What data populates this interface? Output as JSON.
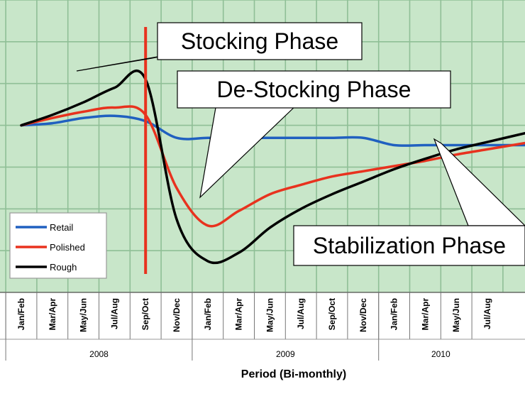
{
  "chart_data": {
    "type": "line",
    "title": "",
    "xlabel": "Period (Bi-monthly)",
    "ylabel": "",
    "categories": [
      "Jan/Feb",
      "Mar/Apr",
      "May/Jun",
      "Jul/Aug",
      "Sep/Oct",
      "Nov/Dec",
      "Jan/Feb",
      "Mar/Apr",
      "May/Jun",
      "Jul/Aug",
      "Sep/Oct",
      "Nov/Dec",
      "Jan/Feb",
      "Mar/Apr",
      "May/Jun",
      "Jul/Aug"
    ],
    "year_groups": [
      {
        "label": "2008",
        "start": 0,
        "end": 5
      },
      {
        "label": "2009",
        "start": 6,
        "end": 11
      },
      {
        "label": "2010",
        "start": 12,
        "end": 15
      }
    ],
    "ylim": [
      0,
      14
    ],
    "grid": true,
    "legend_position": "bottom-left",
    "series": [
      {
        "name": "Retail",
        "color": "#2060c0",
        "values": [
          8,
          8.1,
          8.35,
          8.45,
          8.2,
          7.4,
          7.4,
          7.4,
          7.4,
          7.4,
          7.4,
          7.4,
          7.05,
          7.05,
          7.05,
          7.05
        ]
      },
      {
        "name": "Polished",
        "color": "#e8321e",
        "values": [
          8,
          8.35,
          8.65,
          8.85,
          8.5,
          5.0,
          3.2,
          3.9,
          4.7,
          5.15,
          5.55,
          5.8,
          6.05,
          6.3,
          6.6,
          6.85
        ]
      },
      {
        "name": "Rough",
        "color": "#000000",
        "values": [
          8,
          8.5,
          9.1,
          9.8,
          10.2,
          3.5,
          1.5,
          1.9,
          3.1,
          4.0,
          4.7,
          5.3,
          5.9,
          6.4,
          6.85,
          7.2
        ]
      }
    ],
    "annotations": [
      {
        "text": "Stocking Phase"
      },
      {
        "text": "De-Stocking Phase"
      },
      {
        "text": "Stabilization Phase"
      }
    ]
  },
  "colors": {
    "plot_background": "#c8e6c9",
    "grid": "#8fbf96",
    "marker_line": "#e8321e"
  }
}
